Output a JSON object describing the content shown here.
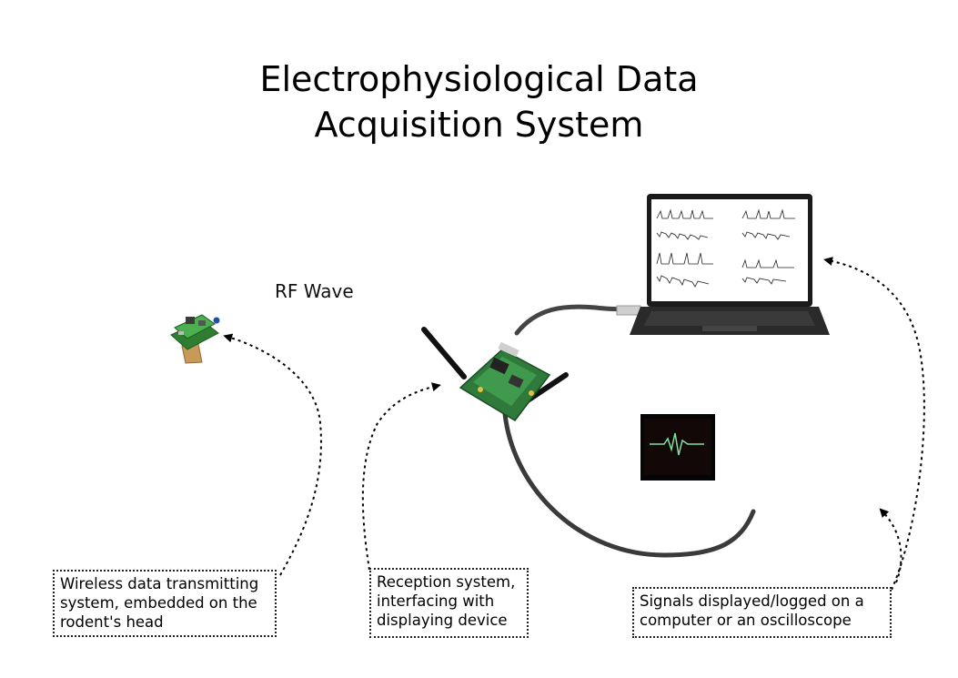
{
  "diagram": {
    "title_lines": [
      "Electrophysiological Data",
      "Acquisition System"
    ],
    "rf_label": "RF Wave",
    "captions": {
      "transmitter": [
        "Wireless data transmitting",
        "system, embedded on the",
        "rodent's head"
      ],
      "receiver": [
        "Reception system,",
        "interfacing with",
        "displaying device"
      ],
      "display": [
        "Signals displayed/logged on a",
        "computer or an oscilloscope"
      ]
    }
  }
}
